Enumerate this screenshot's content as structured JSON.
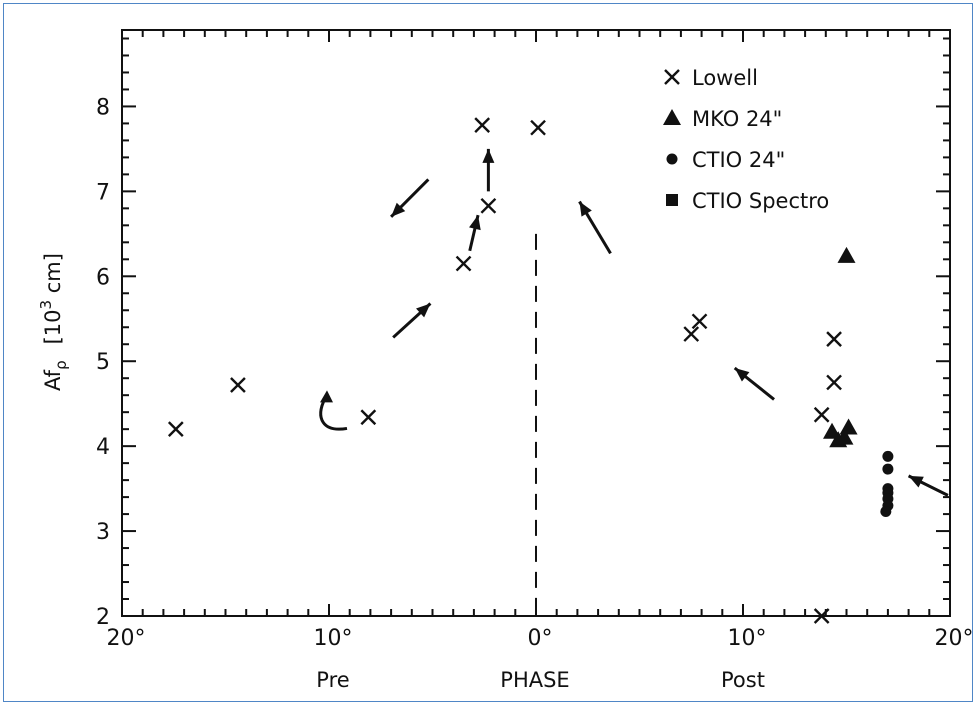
{
  "chart_data": {
    "type": "scatter",
    "title": "",
    "xlabel": "PHASE",
    "xlabel_left": "Pre",
    "xlabel_right": "Post",
    "ylabel": "Afρ  [10³ cm]",
    "ylabel_parts": {
      "main": "Af",
      "sub": "ρ",
      "unit_open": "[10",
      "unit_exp": "3",
      "unit_close": " cm]"
    },
    "xlim": [
      -20,
      20
    ],
    "ylim": [
      2,
      8.9
    ],
    "x_ticks": [
      {
        "value": -20,
        "label": "20°"
      },
      {
        "value": -10,
        "label": "10°"
      },
      {
        "value": 0,
        "label": "0°"
      },
      {
        "value": 10,
        "label": "10°"
      },
      {
        "value": 20,
        "label": "20°"
      }
    ],
    "y_ticks": [
      {
        "value": 2,
        "label": "2"
      },
      {
        "value": 3,
        "label": "3"
      },
      {
        "value": 4,
        "label": "4"
      },
      {
        "value": 5,
        "label": "5"
      },
      {
        "value": 6,
        "label": "6"
      },
      {
        "value": 7,
        "label": "7"
      },
      {
        "value": 8,
        "label": "8"
      }
    ],
    "phase_zero_line": 0,
    "legend_position": "top-right",
    "series": [
      {
        "name": "Lowell",
        "marker": "cross",
        "points": [
          [
            -17.4,
            4.2
          ],
          [
            -14.4,
            4.72
          ],
          [
            -8.1,
            4.34
          ],
          [
            -3.5,
            6.15
          ],
          [
            -2.6,
            7.78
          ],
          [
            -2.3,
            6.83
          ],
          [
            0.1,
            7.75
          ],
          [
            7.5,
            5.32
          ],
          [
            7.9,
            5.47
          ],
          [
            13.8,
            4.37
          ],
          [
            14.4,
            4.75
          ],
          [
            14.4,
            5.26
          ],
          [
            13.8,
            2.0
          ]
        ]
      },
      {
        "name": "MKO 24\"",
        "marker": "triangle",
        "points": [
          [
            15.0,
            6.24
          ],
          [
            14.3,
            4.17
          ],
          [
            14.6,
            4.07
          ],
          [
            14.9,
            4.1
          ],
          [
            15.1,
            4.22
          ]
        ]
      },
      {
        "name": "CTIO 24\"",
        "marker": "circle",
        "points": [
          [
            17.0,
            3.88
          ],
          [
            17.0,
            3.73
          ],
          [
            17.0,
            3.5
          ],
          [
            17.0,
            3.45
          ],
          [
            17.0,
            3.38
          ],
          [
            17.0,
            3.3
          ],
          [
            16.9,
            3.23
          ]
        ]
      },
      {
        "name": "CTIO Spectro",
        "marker": "square",
        "points": []
      }
    ],
    "annotations": [
      {
        "type": "arrow",
        "from": [
          -6.9,
          5.28
        ],
        "to": [
          -5.1,
          5.68
        ]
      },
      {
        "type": "arrow",
        "from": [
          -5.2,
          7.14
        ],
        "to": [
          -7.0,
          6.7
        ]
      },
      {
        "type": "arrow",
        "from": [
          -3.2,
          6.3
        ],
        "to": [
          -2.8,
          6.72
        ]
      },
      {
        "type": "arrow",
        "from": [
          -2.3,
          7.0
        ],
        "to": [
          -2.3,
          7.5
        ]
      },
      {
        "type": "arrow",
        "from": [
          3.6,
          6.27
        ],
        "to": [
          2.1,
          6.88
        ]
      },
      {
        "type": "arrow",
        "from": [
          11.5,
          4.55
        ],
        "to": [
          9.6,
          4.92
        ]
      },
      {
        "type": "arrow",
        "from": [
          19.9,
          3.42
        ],
        "to": [
          18.0,
          3.65
        ]
      },
      {
        "type": "curl",
        "at": [
          -10.0,
          4.35
        ]
      }
    ]
  }
}
